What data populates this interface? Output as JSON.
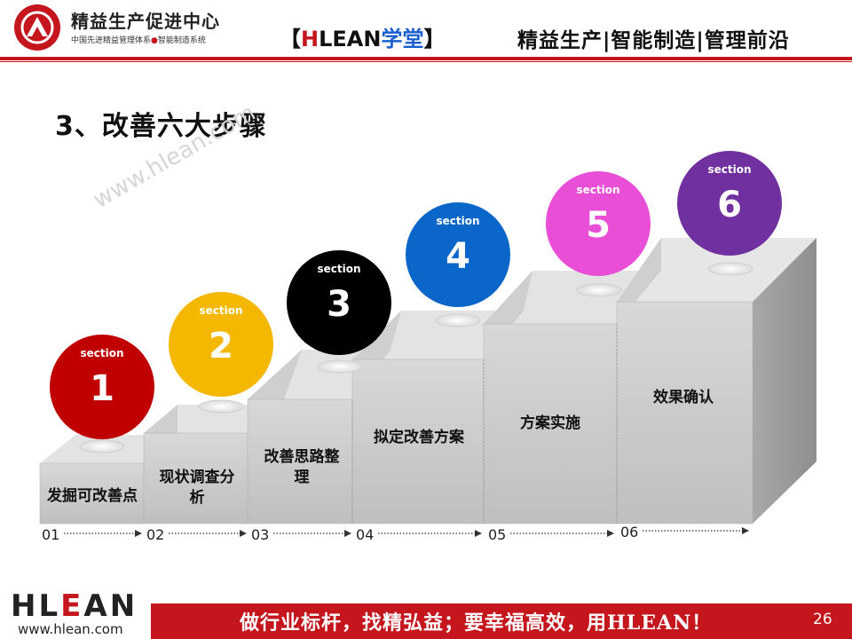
{
  "header": {
    "logo_title": "精益生产促进中心",
    "logo_subtitle_part1": "中国先进精益管理体系",
    "logo_subtitle_dot": "●",
    "logo_subtitle_part2": "智能制造系统",
    "brand_bracket_left": "【",
    "brand_h": "H",
    "brand_lean": "LEAN",
    "brand_xuetang": "学堂",
    "brand_bracket_right": "】",
    "tagline": "精益生产|智能制造|管理前沿"
  },
  "title": "3、改善六大步骤",
  "watermark": "www.hlean.com",
  "steps": [
    {
      "section": "section",
      "number": "1",
      "label": "发掘可改善点",
      "index": "01",
      "color": "#c00000"
    },
    {
      "section": "section",
      "number": "2",
      "label": "现状调查分析",
      "index": "02",
      "color": "#f5b800"
    },
    {
      "section": "section",
      "number": "3",
      "label": "改善思路整理",
      "index": "03",
      "color": "#000000"
    },
    {
      "section": "section",
      "number": "4",
      "label": "拟定改善方案",
      "index": "04",
      "color": "#0a66c9"
    },
    {
      "section": "section",
      "number": "5",
      "label": "方案实施",
      "index": "05",
      "color": "#e94fd6"
    },
    {
      "section": "section",
      "number": "6",
      "label": "效果确认",
      "index": "06",
      "color": "#7030a0"
    }
  ],
  "footer": {
    "logo_h": "H",
    "logo_l": "L",
    "logo_e": "E",
    "logo_an": "AN",
    "url": "www.hlean.com",
    "slogan": "做行业标杆，找精弘益；要幸福高效，用HLEAN！",
    "page_number": "26"
  }
}
